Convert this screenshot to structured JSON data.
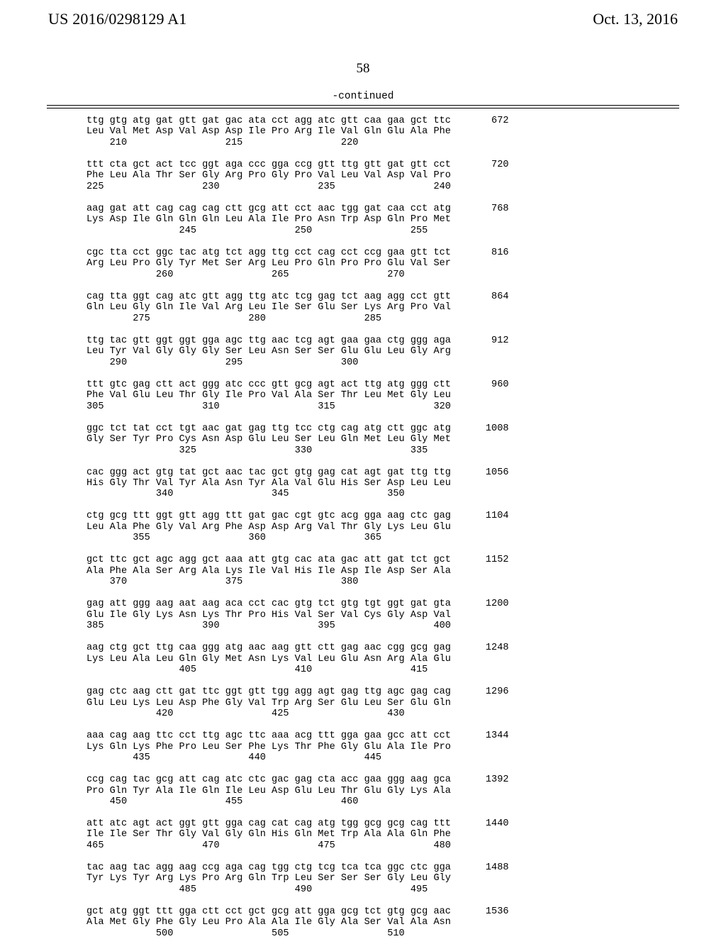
{
  "header": {
    "pubnum": "US 2016/0298129 A1",
    "pubdate": "Oct. 13, 2016"
  },
  "pagenum": "58",
  "continued": "-continued",
  "seq": "ttg gtg atg gat gtt gat gac ata cct agg atc gtt caa gaa gct ttc       672\nLeu Val Met Asp Val Asp Asp Ile Pro Arg Ile Val Gln Glu Ala Phe\n    210                 215                 220\n\nttt cta gct act tcc ggt aga ccc gga ccg gtt ttg gtt gat gtt cct       720\nPhe Leu Ala Thr Ser Gly Arg Pro Gly Pro Val Leu Val Asp Val Pro\n225                 230                 235                 240\n\naag gat att cag cag cag ctt gcg att cct aac tgg gat caa cct atg       768\nLys Asp Ile Gln Gln Gln Leu Ala Ile Pro Asn Trp Asp Gln Pro Met\n                245                 250                 255\n\ncgc tta cct ggc tac atg tct agg ttg cct cag cct ccg gaa gtt tct       816\nArg Leu Pro Gly Tyr Met Ser Arg Leu Pro Gln Pro Pro Glu Val Ser\n            260                 265                 270\n\ncag tta ggt cag atc gtt agg ttg atc tcg gag tct aag agg cct gtt       864\nGln Leu Gly Gln Ile Val Arg Leu Ile Ser Glu Ser Lys Arg Pro Val\n        275                 280                 285\n\nttg tac gtt ggt ggt gga agc ttg aac tcg agt gaa gaa ctg ggg aga       912\nLeu Tyr Val Gly Gly Gly Ser Leu Asn Ser Ser Glu Glu Leu Gly Arg\n    290                 295                 300\n\nttt gtc gag ctt act ggg atc ccc gtt gcg agt act ttg atg ggg ctt       960\nPhe Val Glu Leu Thr Gly Ile Pro Val Ala Ser Thr Leu Met Gly Leu\n305                 310                 315                 320\n\nggc tct tat cct tgt aac gat gag ttg tcc ctg cag atg ctt ggc atg      1008\nGly Ser Tyr Pro Cys Asn Asp Glu Leu Ser Leu Gln Met Leu Gly Met\n                325                 330                 335\n\ncac ggg act gtg tat gct aac tac gct gtg gag cat agt gat ttg ttg      1056\nHis Gly Thr Val Tyr Ala Asn Tyr Ala Val Glu His Ser Asp Leu Leu\n            340                 345                 350\n\nctg gcg ttt ggt gtt agg ttt gat gac cgt gtc acg gga aag ctc gag      1104\nLeu Ala Phe Gly Val Arg Phe Asp Asp Arg Val Thr Gly Lys Leu Glu\n        355                 360                 365\n\ngct ttc gct agc agg gct aaa att gtg cac ata gac att gat tct gct      1152\nAla Phe Ala Ser Arg Ala Lys Ile Val His Ile Asp Ile Asp Ser Ala\n    370                 375                 380\n\ngag att ggg aag aat aag aca cct cac gtg tct gtg tgt ggt gat gta      1200\nGlu Ile Gly Lys Asn Lys Thr Pro His Val Ser Val Cys Gly Asp Val\n385                 390                 395                 400\n\naag ctg gct ttg caa ggg atg aac aag gtt ctt gag aac cgg gcg gag      1248\nLys Leu Ala Leu Gln Gly Met Asn Lys Val Leu Glu Asn Arg Ala Glu\n                405                 410                 415\n\ngag ctc aag ctt gat ttc ggt gtt tgg agg agt gag ttg agc gag cag      1296\nGlu Leu Lys Leu Asp Phe Gly Val Trp Arg Ser Glu Leu Ser Glu Gln\n            420                 425                 430\n\naaa cag aag ttc cct ttg agc ttc aaa acg ttt gga gaa gcc att cct      1344\nLys Gln Lys Phe Pro Leu Ser Phe Lys Thr Phe Gly Glu Ala Ile Pro\n        435                 440                 445\n\nccg cag tac gcg att cag atc ctc gac gag cta acc gaa ggg aag gca      1392\nPro Gln Tyr Ala Ile Gln Ile Leu Asp Glu Leu Thr Glu Gly Lys Ala\n    450                 455                 460\n\natt atc agt act ggt gtt gga cag cat cag atg tgg gcg gcg cag ttt      1440\nIle Ile Ser Thr Gly Val Gly Gln His Gln Met Trp Ala Ala Gln Phe\n465                 470                 475                 480\n\ntac aag tac agg aag ccg aga cag tgg ctg tcg tca tca ggc ctc gga      1488\nTyr Lys Tyr Arg Lys Pro Arg Gln Trp Leu Ser Ser Ser Gly Leu Gly\n                485                 490                 495\n\ngct atg ggt ttt gga ctt cct gct gcg att gga gcg tct gtg gcg aac      1536\nAla Met Gly Phe Gly Leu Pro Ala Ala Ile Gly Ala Ser Val Ala Asn\n            500                 505                 510"
}
